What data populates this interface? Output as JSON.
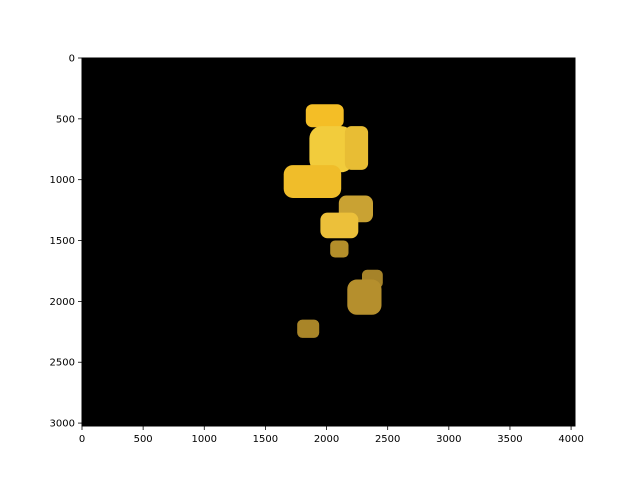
{
  "chart_data": {
    "type": "heatmap",
    "title": "",
    "xlabel": "",
    "ylabel": "",
    "xlim": [
      0,
      4032
    ],
    "ylim": [
      3024,
      0
    ],
    "y_inverted": true,
    "grid": false,
    "legend": "none",
    "x_ticks": [
      0,
      500,
      1000,
      1500,
      2000,
      2500,
      3000,
      3500,
      4000
    ],
    "x_tick_labels": [
      "0",
      "500",
      "1000",
      "1500",
      "2000",
      "2500",
      "3000",
      "3500",
      "4000"
    ],
    "y_ticks": [
      0,
      500,
      1000,
      1500,
      2000,
      2500,
      3000
    ],
    "y_tick_labels": [
      "0",
      "500",
      "1000",
      "1500",
      "2000",
      "2500",
      "3000"
    ],
    "background_color": "#000000",
    "colors": {
      "bright": "#f6c22a",
      "medium": "#e0b633",
      "dim": "#b8912c",
      "dark": "#9c7e24"
    },
    "regions": [
      {
        "name": "region-1",
        "x": [
          1830,
          2140
        ],
        "y": [
          380,
          570
        ],
        "color": "#f4be26"
      },
      {
        "name": "region-2",
        "x": [
          1860,
          2220
        ],
        "y": [
          560,
          940
        ],
        "color": "#f2cc3c"
      },
      {
        "name": "region-3",
        "x": [
          2150,
          2340
        ],
        "y": [
          560,
          920
        ],
        "color": "#e8bd34"
      },
      {
        "name": "region-4",
        "x": [
          1650,
          2120
        ],
        "y": [
          880,
          1150
        ],
        "color": "#f0bd2a"
      },
      {
        "name": "region-5",
        "x": [
          2100,
          2380
        ],
        "y": [
          1130,
          1350
        ],
        "color": "#c9a233"
      },
      {
        "name": "region-6",
        "x": [
          1950,
          2260
        ],
        "y": [
          1270,
          1480
        ],
        "color": "#ecc03a"
      },
      {
        "name": "region-7",
        "x": [
          2030,
          2180
        ],
        "y": [
          1500,
          1640
        ],
        "color": "#b38e2a"
      },
      {
        "name": "region-8",
        "x": [
          2290,
          2460
        ],
        "y": [
          1740,
          1890
        ],
        "color": "#a68329"
      },
      {
        "name": "region-9",
        "x": [
          2170,
          2450
        ],
        "y": [
          1820,
          2110
        ],
        "color": "#b58f2d"
      },
      {
        "name": "region-10",
        "x": [
          1760,
          1940
        ],
        "y": [
          2150,
          2300
        ],
        "color": "#a98528"
      }
    ]
  }
}
